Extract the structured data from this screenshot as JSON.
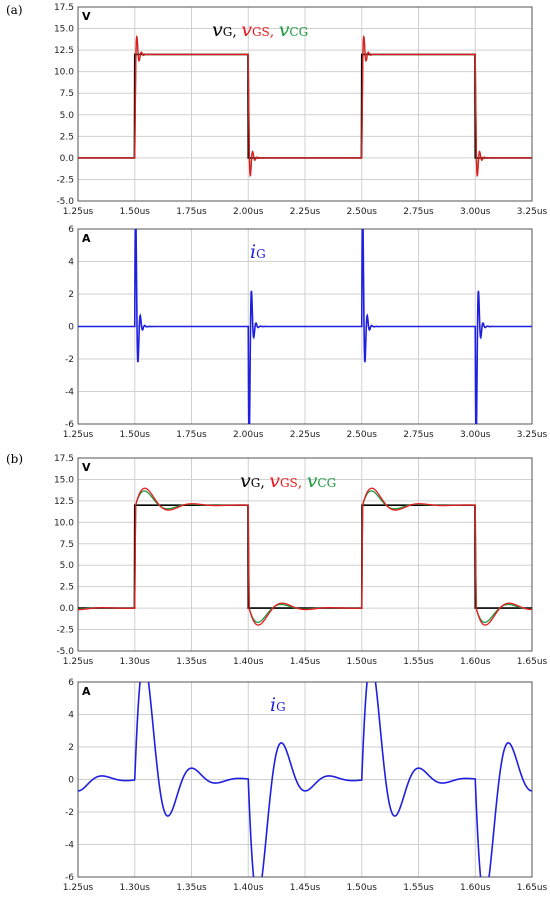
{
  "panels": {
    "a": "(a)",
    "b": "(b)"
  },
  "colors": {
    "vG": "#000000",
    "vGS": "#e8191e",
    "vCG": "#1a9a3c",
    "iG": "#1f1fe0",
    "grid": "#d0d0d0"
  },
  "chart_data": [
    {
      "type": "line",
      "panel": "(a)",
      "unit_label": "V",
      "x_ticks": [
        "1.25us",
        "1.50us",
        "1.75us",
        "2.00us",
        "2.25us",
        "2.50us",
        "2.75us",
        "3.00us",
        "3.25us"
      ],
      "y_ticks": [
        "17.5",
        "15.0",
        "12.5",
        "10.0",
        "7.5",
        "5.0",
        "2.5",
        "0.0",
        "-2.5",
        "-5.0"
      ],
      "xlim": [
        1.25,
        3.25
      ],
      "ylim": [
        -5,
        17.5
      ],
      "grid": true,
      "legend": [
        {
          "v": "v",
          "sub": "G",
          "sep": ", "
        },
        {
          "v": "v",
          "sub": "GS",
          "sep": ", "
        },
        {
          "v": "v",
          "sub": "CG",
          "sep": ""
        }
      ],
      "model": {
        "kind": "voltage",
        "period": 1.0,
        "t_on": 1.5,
        "t_off": 2.0,
        "high": 12,
        "edge": 0.005,
        "series": [
          {
            "key": "vCG",
            "overshoot": 3.2,
            "freq_cycles": 0.02,
            "decay": 0.01
          },
          {
            "key": "vGS",
            "overshoot": 3.4,
            "freq_cycles": 0.02,
            "decay": 0.0095
          }
        ]
      }
    },
    {
      "type": "line",
      "panel": "(a)",
      "unit_label": "A",
      "x_ticks": [
        "1.25us",
        "1.50us",
        "1.75us",
        "2.00us",
        "2.25us",
        "2.50us",
        "2.75us",
        "3.00us",
        "3.25us"
      ],
      "y_ticks": [
        "6",
        "4",
        "2",
        "0",
        "-2",
        "-4",
        "-6"
      ],
      "xlim": [
        1.25,
        3.25
      ],
      "ylim": [
        -6,
        6
      ],
      "grid": true,
      "legend": [
        {
          "v": "i",
          "sub": "G",
          "sep": ""
        }
      ],
      "model": {
        "kind": "current",
        "period": 1.0,
        "t_on": 1.5,
        "t_off": 2.0,
        "peak": 5.5,
        "freq_cycles": 0.02,
        "decay": 0.0085
      }
    },
    {
      "type": "line",
      "panel": "(b)",
      "unit_label": "V",
      "x_ticks": [
        "1.25us",
        "1.30us",
        "1.35us",
        "1.40us",
        "1.45us",
        "1.50us",
        "1.55us",
        "1.60us",
        "1.65us"
      ],
      "y_ticks": [
        "17.5",
        "15.0",
        "12.5",
        "10.0",
        "7.5",
        "5.0",
        "2.5",
        "0.0",
        "-2.5",
        "-5.0"
      ],
      "xlim": [
        1.25,
        1.65
      ],
      "ylim": [
        -5,
        17.5
      ],
      "grid": true,
      "legend": [
        {
          "v": "v",
          "sub": "G",
          "sep": ", "
        },
        {
          "v": "v",
          "sub": "GS",
          "sep": ", "
        },
        {
          "v": "v",
          "sub": "CG",
          "sep": ""
        }
      ],
      "model": {
        "kind": "voltage",
        "period": 0.2,
        "t_on": 1.3,
        "t_off": 1.4,
        "high": 12,
        "edge": 0.0008,
        "series": [
          {
            "key": "vCG",
            "overshoot": 3.0,
            "freq_cycles": 0.041,
            "decay": 0.015
          },
          {
            "key": "vGS",
            "overshoot": 3.4,
            "freq_cycles": 0.042,
            "decay": 0.017
          }
        ]
      }
    },
    {
      "type": "line",
      "panel": "(b)",
      "unit_label": "A",
      "x_ticks": [
        "1.25us",
        "1.30us",
        "1.35us",
        "1.40us",
        "1.45us",
        "1.50us",
        "1.55us",
        "1.60us",
        "1.65us"
      ],
      "y_ticks": [
        "6",
        "4",
        "2",
        "0",
        "-2",
        "-4",
        "-6"
      ],
      "xlim": [
        1.25,
        1.65
      ],
      "ylim": [
        -6,
        6
      ],
      "grid": true,
      "legend": [
        {
          "v": "i",
          "sub": "G",
          "sep": ""
        }
      ],
      "model": {
        "kind": "current",
        "period": 0.2,
        "t_on": 1.3,
        "t_off": 1.4,
        "peak": 5.5,
        "freq_cycles": 0.042,
        "decay": 0.018
      }
    }
  ]
}
